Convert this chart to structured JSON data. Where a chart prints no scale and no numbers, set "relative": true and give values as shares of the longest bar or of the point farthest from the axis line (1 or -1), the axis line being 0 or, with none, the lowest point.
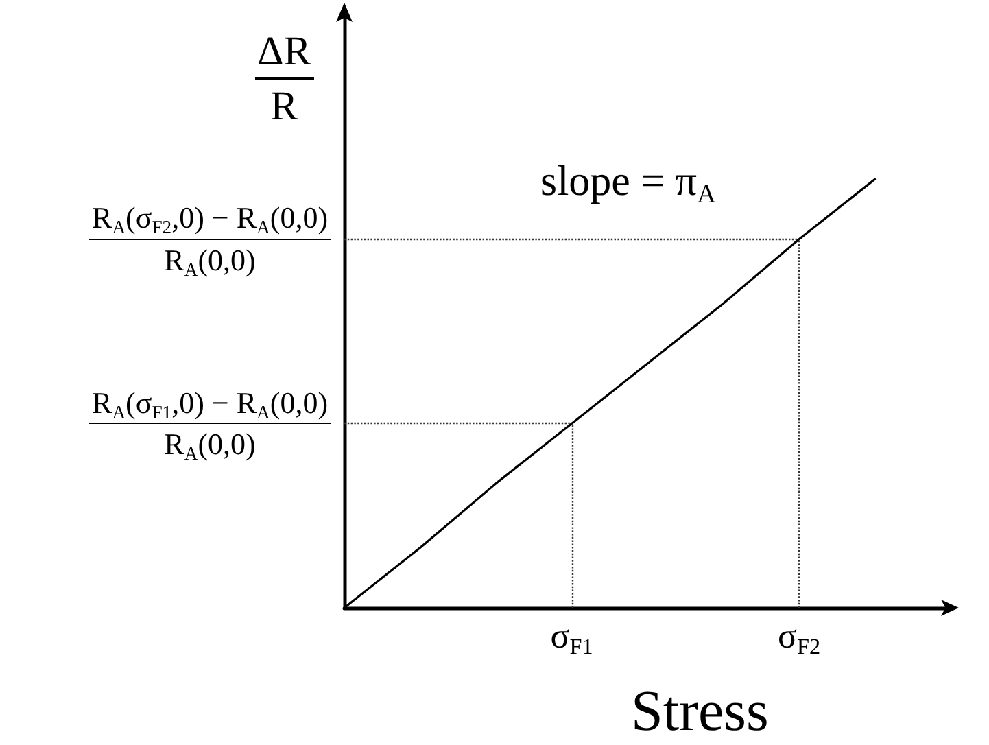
{
  "chart_data": {
    "type": "line",
    "relative": true,
    "xlabel": "Stress",
    "ylabel": "ΔR\nR",
    "annotations": [
      "slope = π$_{A}$"
    ],
    "categories": [
      null,
      null,
      null,
      "σ$_{F1}$",
      null,
      null,
      "σ$_{F2}$",
      null,
      null
    ],
    "values": [
      0,
      0.14,
      0.29,
      0.43,
      0.57,
      0.71,
      0.86,
      1,
      null
    ],
    "color": "#000000",
    "marker": "none",
    "ref_lines": [
      {
        "axis": "x",
        "value": "σ$_{F1}$",
        "line_style": "dotted"
      },
      {
        "axis": "x",
        "value": "σ$_{F2}$",
        "line_style": "dotted"
      },
      {
        "axis": "y",
        "value": 0.43,
        "label": "R$_{A}$(σ$_{F1}$,0) − R$_{A}$(0,0)\nR$_{A}$(0,0)",
        "line_style": "dotted"
      },
      {
        "axis": "y",
        "value": 0.86,
        "label": "R$_{A}$(σ$_{F2}$,0) − R$_{A}$(0,0)\nR$_{A}$(0,0)",
        "line_style": "dotted"
      }
    ]
  }
}
